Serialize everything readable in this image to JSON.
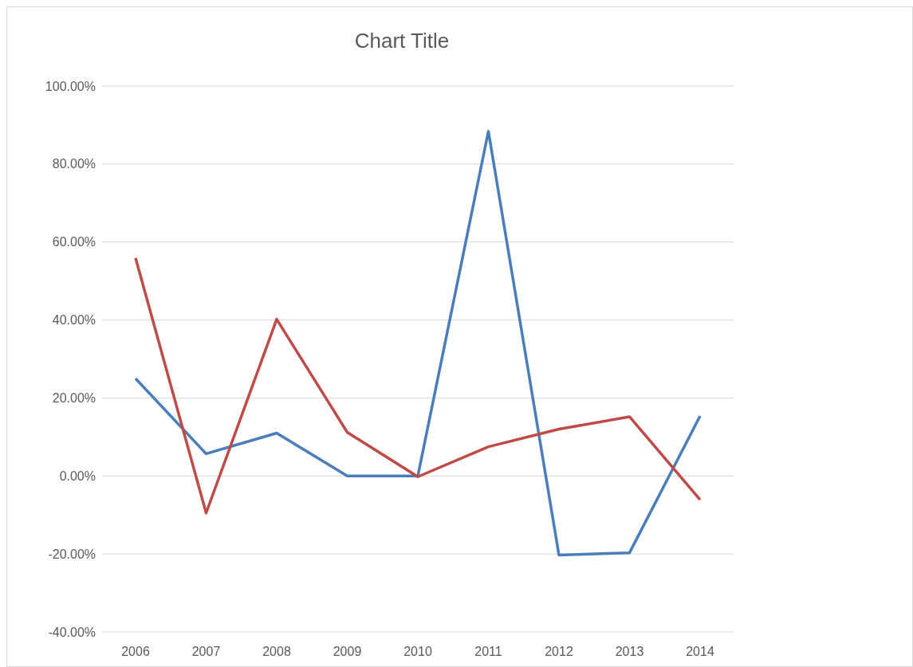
{
  "chart_data": {
    "type": "line",
    "title": "Chart Title",
    "categories": [
      "2006",
      "2007",
      "2008",
      "2009",
      "2010",
      "2011",
      "2012",
      "2013",
      "2014"
    ],
    "series": [
      {
        "color": "#4a7ebb",
        "values": [
          25,
          5.7,
          11,
          0,
          0,
          88.4,
          -20.3,
          -19.7,
          15.4
        ]
      },
      {
        "color": "#be4b48",
        "values": [
          55.9,
          -9.5,
          40.2,
          11.2,
          -0.2,
          7.5,
          12,
          15.2,
          -6.1
        ]
      }
    ],
    "ylim": [
      -40,
      100
    ],
    "yticks": [
      {
        "value": -40,
        "label": "-40.00%"
      },
      {
        "value": -20,
        "label": "-20.00%"
      },
      {
        "value": 0,
        "label": "0.00%"
      },
      {
        "value": 20,
        "label": "20.00%"
      },
      {
        "value": 40,
        "label": "40.00%"
      },
      {
        "value": 60,
        "label": "60.00%"
      },
      {
        "value": 80,
        "label": "80.00%"
      },
      {
        "value": 100,
        "label": "100.00%"
      }
    ],
    "grid": "y",
    "line_style": "solid",
    "marker": "none"
  }
}
